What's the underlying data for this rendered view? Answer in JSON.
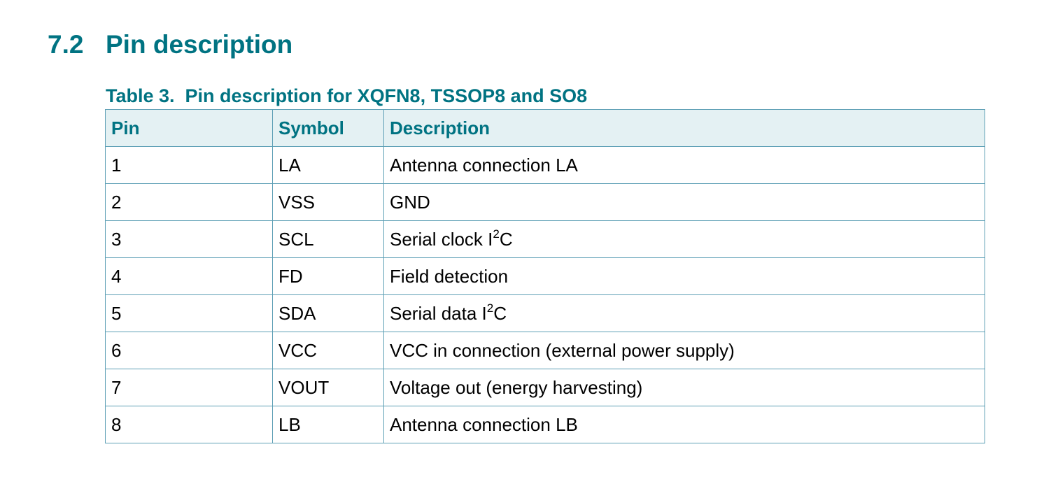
{
  "section": {
    "number": "7.2",
    "title": "Pin description"
  },
  "table": {
    "caption": "Table 3.  Pin description for XQFN8, TSSOP8 and SO8",
    "headers": {
      "pin": "Pin",
      "symbol": "Symbol",
      "description": "Description"
    },
    "rows": [
      {
        "pin": "1",
        "symbol": "LA",
        "description": "Antenna connection LA"
      },
      {
        "pin": "2",
        "symbol": "VSS",
        "description": "GND"
      },
      {
        "pin": "3",
        "symbol": "SCL",
        "description": "Serial clock I",
        "sup": "2",
        "suffix": "C"
      },
      {
        "pin": "4",
        "symbol": "FD",
        "description": "Field detection"
      },
      {
        "pin": "5",
        "symbol": "SDA",
        "description": "Serial data I",
        "sup": "2",
        "suffix": "C"
      },
      {
        "pin": "6",
        "symbol": "VCC",
        "description": "VCC in connection (external power supply)"
      },
      {
        "pin": "7",
        "symbol": "VOUT",
        "description": "Voltage out (energy harvesting)"
      },
      {
        "pin": "8",
        "symbol": "LB",
        "description": "Antenna connection LB"
      }
    ]
  },
  "colors": {
    "heading": "#007382",
    "header_bg": "#e4f1f3",
    "border": "#5d9fb5"
  }
}
